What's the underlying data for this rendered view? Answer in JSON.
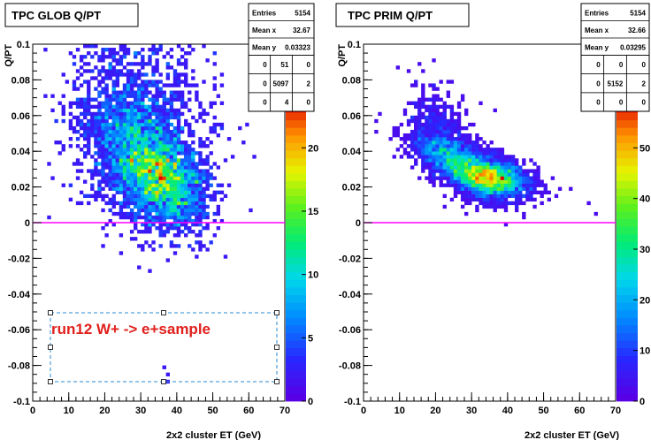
{
  "chart_data": [
    {
      "type": "heatmap",
      "title": "TPC GLOB Q/PT",
      "xlabel": "2x2 cluster ET (GeV)",
      "ylabel": "Q/PT",
      "xlim": [
        0,
        70
      ],
      "ylim": [
        -0.1,
        0.1
      ],
      "x_ticks": [
        "0",
        "10",
        "20",
        "30",
        "40",
        "50",
        "60",
        "70"
      ],
      "y_ticks": [
        "-0.1",
        "-0.08",
        "-0.06",
        "-0.04",
        "-0.02",
        "0",
        "0.02",
        "0.04",
        "0.06",
        "0.08",
        "0.1"
      ],
      "z_ticks": [
        "0",
        "5",
        "10",
        "15",
        "20"
      ],
      "zmax": 24,
      "zero_line_color": "#ff00ff",
      "stats": {
        "Entries": "5154",
        "Mean x": "32.67",
        "Mean y": "0.03323",
        "grid": [
          [
            "0",
            "51",
            "0"
          ],
          [
            "0",
            "5097",
            "2"
          ],
          [
            "0",
            "4",
            "0"
          ]
        ]
      },
      "blobs": [
        {
          "cx": 36,
          "cy": 0.026,
          "sx": 6.0,
          "sy": 0.014,
          "rho": -0.35,
          "n": 2600
        },
        {
          "cx": 27,
          "cy": 0.045,
          "sx": 7.0,
          "sy": 0.022,
          "rho": -0.3,
          "n": 1600
        },
        {
          "cx": 32,
          "cy": 0.06,
          "sx": 10.0,
          "sy": 0.028,
          "rho": 0.0,
          "n": 850
        }
      ],
      "outliers": [
        [
          36,
          -0.082
        ],
        [
          37,
          -0.086
        ],
        [
          37,
          -0.09
        ],
        [
          29,
          -0.025
        ],
        [
          24,
          -0.017
        ],
        [
          41,
          0.011
        ],
        [
          45,
          0.017
        ],
        [
          18,
          0.019
        ],
        [
          60,
          0.006
        ]
      ],
      "annotation": "run12 W+ -> e+sample"
    },
    {
      "type": "heatmap",
      "title": "TPC PRIM  Q/PT",
      "xlabel": "2x2 cluster ET (GeV)",
      "ylabel": "Q/PT",
      "xlim": [
        0,
        70
      ],
      "ylim": [
        -0.1,
        0.1
      ],
      "x_ticks": [
        "0",
        "10",
        "20",
        "30",
        "40",
        "50",
        "60",
        "70"
      ],
      "y_ticks": [
        "-0.1",
        "-0.08",
        "-0.06",
        "-0.04",
        "-0.02",
        "0",
        "0.02",
        "0.04",
        "0.06",
        "0.08",
        "0.1"
      ],
      "z_ticks": [
        "0",
        "10",
        "20",
        "30",
        "40",
        "50"
      ],
      "zmax": 60,
      "zero_line_color": "#ff00ff",
      "stats": {
        "Entries": "5154",
        "Mean x": "32.66",
        "Mean y": "0.03295",
        "grid": [
          [
            "0",
            "0",
            "0"
          ],
          [
            "0",
            "5152",
            "2"
          ],
          [
            "0",
            "0",
            "0"
          ]
        ]
      },
      "blobs": [
        {
          "cx": 36,
          "cy": 0.025,
          "sx": 5.0,
          "sy": 0.0055,
          "rho": -0.25,
          "n": 2400
        },
        {
          "cx": 27,
          "cy": 0.033,
          "sx": 6.5,
          "sy": 0.009,
          "rho": -0.65,
          "n": 2300
        },
        {
          "cx": 22,
          "cy": 0.05,
          "sx": 5.0,
          "sy": 0.014,
          "rho": -0.5,
          "n": 450
        }
      ],
      "outliers": [
        [
          22,
          0.01
        ],
        [
          28,
          0.005
        ],
        [
          38,
          0.012
        ],
        [
          47,
          0.018
        ],
        [
          52,
          0.025
        ],
        [
          57,
          0.018
        ],
        [
          62,
          0.012
        ],
        [
          64,
          0.004
        ],
        [
          44,
          0.004
        ]
      ],
      "annotation": ""
    }
  ]
}
